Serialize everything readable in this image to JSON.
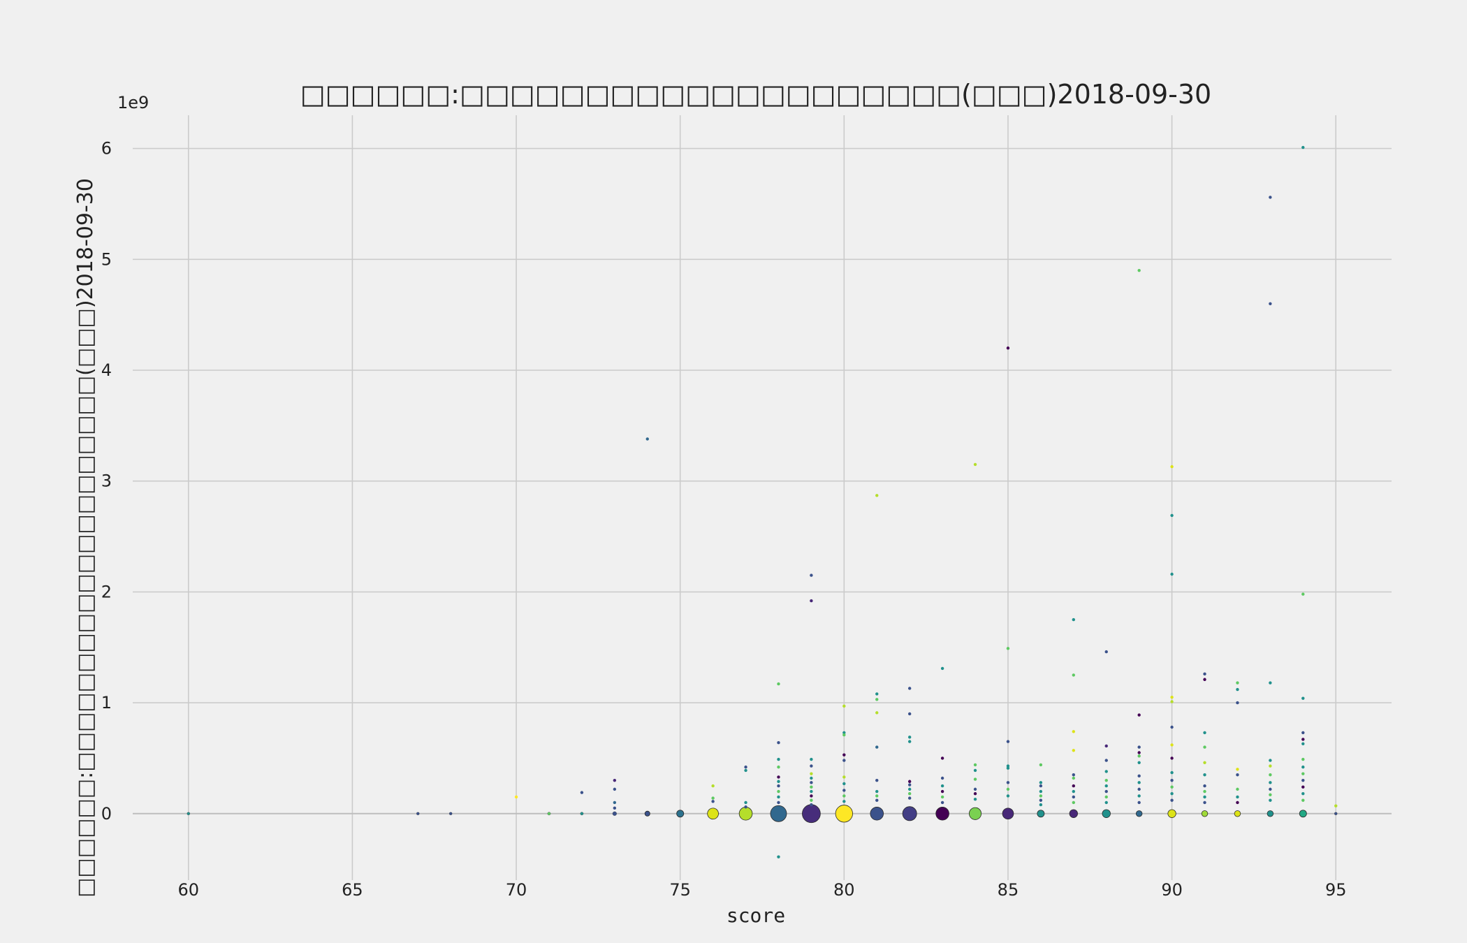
{
  "chart_data": {
    "type": "scatter",
    "title": "□□□□□□:□□□□□□□□□□□□□□□□□□□□(□□□)2018-09-30",
    "xlabel": "score",
    "ylabel": "□□□□□□:□□□□□□□□□□□□□□□□□□□□(□□□)2018-09-30",
    "y_offset_label": "1e9",
    "xlim": [
      58.3,
      96.7
    ],
    "ylim": [
      -0.6,
      6.3
    ],
    "x_ticks": [
      60,
      65,
      70,
      75,
      80,
      85,
      90,
      95
    ],
    "y_ticks": [
      0,
      1,
      2,
      3,
      4,
      5,
      6
    ],
    "grid": true,
    "point_size_encodes": "count of points at each score",
    "colors_ramp": [
      "#440154",
      "#3b528b",
      "#21918c",
      "#5ec962",
      "#fde725"
    ],
    "aggregated_points": [
      {
        "x": 60,
        "y": 0,
        "size": 1,
        "color": "#21918c"
      },
      {
        "x": 67,
        "y": 0,
        "size": 1,
        "color": "#3b528b"
      },
      {
        "x": 68,
        "y": 0,
        "size": 1,
        "color": "#3b528b"
      },
      {
        "x": 71,
        "y": 0,
        "size": 3,
        "color": "#5ec962"
      },
      {
        "x": 72,
        "y": 0,
        "size": 3,
        "color": "#21918c"
      },
      {
        "x": 73,
        "y": 0,
        "size": 4,
        "color": "#3b528b"
      },
      {
        "x": 74,
        "y": 0,
        "size": 5,
        "color": "#3b528b"
      },
      {
        "x": 75,
        "y": 0,
        "size": 7,
        "color": "#2c728e"
      },
      {
        "x": 76,
        "y": 0,
        "size": 11,
        "color": "#dde318"
      },
      {
        "x": 77,
        "y": 0,
        "size": 13,
        "color": "#b5de2b"
      },
      {
        "x": 78,
        "y": 0,
        "size": 16,
        "color": "#31688e"
      },
      {
        "x": 79,
        "y": 0,
        "size": 18,
        "color": "#472d7b"
      },
      {
        "x": 80,
        "y": 0,
        "size": 17,
        "color": "#fde725"
      },
      {
        "x": 81,
        "y": 0,
        "size": 13,
        "color": "#3b528b"
      },
      {
        "x": 82,
        "y": 0,
        "size": 14,
        "color": "#433e85"
      },
      {
        "x": 83,
        "y": 0,
        "size": 13,
        "color": "#440154"
      },
      {
        "x": 84,
        "y": 0,
        "size": 12,
        "color": "#7ad151"
      },
      {
        "x": 85,
        "y": 0,
        "size": 11,
        "color": "#482878"
      },
      {
        "x": 86,
        "y": 0,
        "size": 7,
        "color": "#21918c"
      },
      {
        "x": 87,
        "y": 0,
        "size": 8,
        "color": "#482878"
      },
      {
        "x": 88,
        "y": 0,
        "size": 8,
        "color": "#21918c"
      },
      {
        "x": 89,
        "y": 0,
        "size": 6,
        "color": "#31688e"
      },
      {
        "x": 90,
        "y": 0,
        "size": 8,
        "color": "#dde318"
      },
      {
        "x": 91,
        "y": 0,
        "size": 6,
        "color": "#a0da39"
      },
      {
        "x": 92,
        "y": 0,
        "size": 6,
        "color": "#dde318"
      },
      {
        "x": 93,
        "y": 0,
        "size": 6,
        "color": "#21918c"
      },
      {
        "x": 94,
        "y": 0,
        "size": 7,
        "color": "#22a884"
      },
      {
        "x": 95,
        "y": 0,
        "size": 2,
        "color": "#3b528b"
      }
    ],
    "points": [
      {
        "x": 70,
        "y": 0.15,
        "color": "#fde725"
      },
      {
        "x": 72,
        "y": 0.19,
        "color": "#3b528b"
      },
      {
        "x": 73,
        "y": 0.3,
        "color": "#482878"
      },
      {
        "x": 73,
        "y": 0.22,
        "color": "#3b528b"
      },
      {
        "x": 73,
        "y": 0.1,
        "color": "#31688e"
      },
      {
        "x": 73,
        "y": 0.05,
        "color": "#3b528b"
      },
      {
        "x": 74,
        "y": 3.38,
        "color": "#31688e"
      },
      {
        "x": 76,
        "y": 0.25,
        "color": "#b5de2b"
      },
      {
        "x": 76,
        "y": 0.14,
        "color": "#5ec962"
      },
      {
        "x": 76,
        "y": 0.11,
        "color": "#3b528b"
      },
      {
        "x": 77,
        "y": 0.42,
        "color": "#3b528b"
      },
      {
        "x": 77,
        "y": 0.39,
        "color": "#21918c"
      },
      {
        "x": 77,
        "y": 0.1,
        "color": "#21918c"
      },
      {
        "x": 77,
        "y": 0.06,
        "color": "#3b528b"
      },
      {
        "x": 78,
        "y": 1.17,
        "color": "#5ec962"
      },
      {
        "x": 78,
        "y": 0.64,
        "color": "#3b528b"
      },
      {
        "x": 78,
        "y": 0.49,
        "color": "#21918c"
      },
      {
        "x": 78,
        "y": 0.42,
        "color": "#5ec962"
      },
      {
        "x": 78,
        "y": 0.33,
        "color": "#440154"
      },
      {
        "x": 78,
        "y": 0.29,
        "color": "#21918c"
      },
      {
        "x": 78,
        "y": 0.25,
        "color": "#3b528b"
      },
      {
        "x": 78,
        "y": 0.2,
        "color": "#5ec962"
      },
      {
        "x": 78,
        "y": 0.15,
        "color": "#21918c"
      },
      {
        "x": 78,
        "y": 0.1,
        "color": "#3b528b"
      },
      {
        "x": 78,
        "y": -0.39,
        "color": "#21918c"
      },
      {
        "x": 79,
        "y": 2.15,
        "color": "#3b528b"
      },
      {
        "x": 79,
        "y": 1.92,
        "color": "#482878"
      },
      {
        "x": 79,
        "y": 0.49,
        "color": "#21918c"
      },
      {
        "x": 79,
        "y": 0.43,
        "color": "#3b528b"
      },
      {
        "x": 79,
        "y": 0.36,
        "color": "#b5de2b"
      },
      {
        "x": 79,
        "y": 0.32,
        "color": "#21918c"
      },
      {
        "x": 79,
        "y": 0.28,
        "color": "#3b528b"
      },
      {
        "x": 79,
        "y": 0.24,
        "color": "#5ec962"
      },
      {
        "x": 79,
        "y": 0.2,
        "color": "#21918c"
      },
      {
        "x": 79,
        "y": 0.16,
        "color": "#440154"
      },
      {
        "x": 79,
        "y": 0.12,
        "color": "#5ec962"
      },
      {
        "x": 79,
        "y": 0.08,
        "color": "#3b528b"
      },
      {
        "x": 80,
        "y": 0.97,
        "color": "#b5de2b"
      },
      {
        "x": 80,
        "y": 0.73,
        "color": "#21918c"
      },
      {
        "x": 80,
        "y": 0.71,
        "color": "#5ec962"
      },
      {
        "x": 80,
        "y": 0.53,
        "color": "#440154"
      },
      {
        "x": 80,
        "y": 0.48,
        "color": "#3b528b"
      },
      {
        "x": 80,
        "y": 0.33,
        "color": "#b5de2b"
      },
      {
        "x": 80,
        "y": 0.27,
        "color": "#21918c"
      },
      {
        "x": 80,
        "y": 0.21,
        "color": "#3b528b"
      },
      {
        "x": 80,
        "y": 0.16,
        "color": "#5ec962"
      },
      {
        "x": 80,
        "y": 0.11,
        "color": "#21918c"
      },
      {
        "x": 81,
        "y": 2.87,
        "color": "#b5de2b"
      },
      {
        "x": 81,
        "y": 1.08,
        "color": "#21918c"
      },
      {
        "x": 81,
        "y": 1.03,
        "color": "#5ec962"
      },
      {
        "x": 81,
        "y": 0.91,
        "color": "#b5de2b"
      },
      {
        "x": 81,
        "y": 0.6,
        "color": "#31688e"
      },
      {
        "x": 81,
        "y": 0.3,
        "color": "#3b528b"
      },
      {
        "x": 81,
        "y": 0.2,
        "color": "#21918c"
      },
      {
        "x": 81,
        "y": 0.16,
        "color": "#5ec962"
      },
      {
        "x": 81,
        "y": 0.12,
        "color": "#3b528b"
      },
      {
        "x": 82,
        "y": 1.13,
        "color": "#3b528b"
      },
      {
        "x": 82,
        "y": 0.9,
        "color": "#3b528b"
      },
      {
        "x": 82,
        "y": 0.69,
        "color": "#21918c"
      },
      {
        "x": 82,
        "y": 0.65,
        "color": "#21918c"
      },
      {
        "x": 82,
        "y": 0.29,
        "color": "#440154"
      },
      {
        "x": 82,
        "y": 0.26,
        "color": "#3b528b"
      },
      {
        "x": 82,
        "y": 0.22,
        "color": "#21918c"
      },
      {
        "x": 82,
        "y": 0.18,
        "color": "#5ec962"
      },
      {
        "x": 82,
        "y": 0.14,
        "color": "#3b528b"
      },
      {
        "x": 83,
        "y": 1.31,
        "color": "#21918c"
      },
      {
        "x": 83,
        "y": 0.5,
        "color": "#440154"
      },
      {
        "x": 83,
        "y": 0.32,
        "color": "#3b528b"
      },
      {
        "x": 83,
        "y": 0.25,
        "color": "#21918c"
      },
      {
        "x": 83,
        "y": 0.2,
        "color": "#440154"
      },
      {
        "x": 83,
        "y": 0.15,
        "color": "#5ec962"
      },
      {
        "x": 83,
        "y": 0.1,
        "color": "#3b528b"
      },
      {
        "x": 84,
        "y": 3.15,
        "color": "#b5de2b"
      },
      {
        "x": 84,
        "y": 0.44,
        "color": "#5ec962"
      },
      {
        "x": 84,
        "y": 0.39,
        "color": "#21918c"
      },
      {
        "x": 84,
        "y": 0.31,
        "color": "#5ec962"
      },
      {
        "x": 84,
        "y": 0.22,
        "color": "#3b528b"
      },
      {
        "x": 84,
        "y": 0.18,
        "color": "#440154"
      },
      {
        "x": 84,
        "y": 0.13,
        "color": "#21918c"
      },
      {
        "x": 85,
        "y": 4.2,
        "color": "#440154"
      },
      {
        "x": 85,
        "y": 1.49,
        "color": "#5ec962"
      },
      {
        "x": 85,
        "y": 0.65,
        "color": "#3b528b"
      },
      {
        "x": 85,
        "y": 0.43,
        "color": "#21918c"
      },
      {
        "x": 85,
        "y": 0.41,
        "color": "#21918c"
      },
      {
        "x": 85,
        "y": 0.28,
        "color": "#3b528b"
      },
      {
        "x": 85,
        "y": 0.22,
        "color": "#5ec962"
      },
      {
        "x": 85,
        "y": 0.16,
        "color": "#21918c"
      },
      {
        "x": 86,
        "y": 0.44,
        "color": "#5ec962"
      },
      {
        "x": 86,
        "y": 0.28,
        "color": "#21918c"
      },
      {
        "x": 86,
        "y": 0.25,
        "color": "#3b528b"
      },
      {
        "x": 86,
        "y": 0.2,
        "color": "#21918c"
      },
      {
        "x": 86,
        "y": 0.16,
        "color": "#5ec962"
      },
      {
        "x": 86,
        "y": 0.12,
        "color": "#3b528b"
      },
      {
        "x": 86,
        "y": 0.08,
        "color": "#21918c"
      },
      {
        "x": 87,
        "y": 1.75,
        "color": "#21918c"
      },
      {
        "x": 87,
        "y": 1.25,
        "color": "#5ec962"
      },
      {
        "x": 87,
        "y": 0.74,
        "color": "#dde318"
      },
      {
        "x": 87,
        "y": 0.57,
        "color": "#dde318"
      },
      {
        "x": 87,
        "y": 0.35,
        "color": "#3b528b"
      },
      {
        "x": 87,
        "y": 0.32,
        "color": "#5ec962"
      },
      {
        "x": 87,
        "y": 0.25,
        "color": "#440154"
      },
      {
        "x": 87,
        "y": 0.2,
        "color": "#21918c"
      },
      {
        "x": 87,
        "y": 0.15,
        "color": "#3b528b"
      },
      {
        "x": 87,
        "y": 0.1,
        "color": "#5ec962"
      },
      {
        "x": 88,
        "y": 1.46,
        "color": "#3b528b"
      },
      {
        "x": 88,
        "y": 0.61,
        "color": "#482878"
      },
      {
        "x": 88,
        "y": 0.48,
        "color": "#3b528b"
      },
      {
        "x": 88,
        "y": 0.38,
        "color": "#21918c"
      },
      {
        "x": 88,
        "y": 0.3,
        "color": "#5ec962"
      },
      {
        "x": 88,
        "y": 0.25,
        "color": "#21918c"
      },
      {
        "x": 88,
        "y": 0.2,
        "color": "#3b528b"
      },
      {
        "x": 88,
        "y": 0.15,
        "color": "#5ec962"
      },
      {
        "x": 88,
        "y": 0.1,
        "color": "#21918c"
      },
      {
        "x": 89,
        "y": 4.9,
        "color": "#5ec962"
      },
      {
        "x": 89,
        "y": 0.89,
        "color": "#440154"
      },
      {
        "x": 89,
        "y": 0.6,
        "color": "#3b528b"
      },
      {
        "x": 89,
        "y": 0.55,
        "color": "#440154"
      },
      {
        "x": 89,
        "y": 0.52,
        "color": "#5ec962"
      },
      {
        "x": 89,
        "y": 0.46,
        "color": "#21918c"
      },
      {
        "x": 89,
        "y": 0.34,
        "color": "#3b528b"
      },
      {
        "x": 89,
        "y": 0.28,
        "color": "#21918c"
      },
      {
        "x": 89,
        "y": 0.22,
        "color": "#3b528b"
      },
      {
        "x": 89,
        "y": 0.16,
        "color": "#21918c"
      },
      {
        "x": 89,
        "y": 0.1,
        "color": "#3b528b"
      },
      {
        "x": 90,
        "y": 3.13,
        "color": "#dde318"
      },
      {
        "x": 90,
        "y": 2.69,
        "color": "#21918c"
      },
      {
        "x": 90,
        "y": 2.16,
        "color": "#21918c"
      },
      {
        "x": 90,
        "y": 1.05,
        "color": "#dde318"
      },
      {
        "x": 90,
        "y": 1.01,
        "color": "#b5de2b"
      },
      {
        "x": 90,
        "y": 0.78,
        "color": "#3b528b"
      },
      {
        "x": 90,
        "y": 0.62,
        "color": "#dde318"
      },
      {
        "x": 90,
        "y": 0.5,
        "color": "#440154"
      },
      {
        "x": 90,
        "y": 0.37,
        "color": "#21918c"
      },
      {
        "x": 90,
        "y": 0.3,
        "color": "#3b528b"
      },
      {
        "x": 90,
        "y": 0.24,
        "color": "#5ec962"
      },
      {
        "x": 90,
        "y": 0.18,
        "color": "#21918c"
      },
      {
        "x": 90,
        "y": 0.12,
        "color": "#3b528b"
      },
      {
        "x": 91,
        "y": 1.26,
        "color": "#3b528b"
      },
      {
        "x": 91,
        "y": 1.21,
        "color": "#440154"
      },
      {
        "x": 91,
        "y": 0.73,
        "color": "#21918c"
      },
      {
        "x": 91,
        "y": 0.6,
        "color": "#5ec962"
      },
      {
        "x": 91,
        "y": 0.46,
        "color": "#b5de2b"
      },
      {
        "x": 91,
        "y": 0.35,
        "color": "#21918c"
      },
      {
        "x": 91,
        "y": 0.25,
        "color": "#3b528b"
      },
      {
        "x": 91,
        "y": 0.2,
        "color": "#5ec962"
      },
      {
        "x": 91,
        "y": 0.15,
        "color": "#21918c"
      },
      {
        "x": 91,
        "y": 0.1,
        "color": "#3b528b"
      },
      {
        "x": 92,
        "y": 1.18,
        "color": "#5ec962"
      },
      {
        "x": 92,
        "y": 1.12,
        "color": "#21918c"
      },
      {
        "x": 92,
        "y": 1.0,
        "color": "#3b528b"
      },
      {
        "x": 92,
        "y": 0.4,
        "color": "#dde318"
      },
      {
        "x": 92,
        "y": 0.35,
        "color": "#3b528b"
      },
      {
        "x": 92,
        "y": 0.22,
        "color": "#5ec962"
      },
      {
        "x": 92,
        "y": 0.15,
        "color": "#21918c"
      },
      {
        "x": 92,
        "y": 0.1,
        "color": "#440154"
      },
      {
        "x": 93,
        "y": 5.56,
        "color": "#3b528b"
      },
      {
        "x": 93,
        "y": 4.6,
        "color": "#3b528b"
      },
      {
        "x": 93,
        "y": 1.18,
        "color": "#21918c"
      },
      {
        "x": 93,
        "y": 0.48,
        "color": "#21918c"
      },
      {
        "x": 93,
        "y": 0.43,
        "color": "#b5de2b"
      },
      {
        "x": 93,
        "y": 0.35,
        "color": "#5ec962"
      },
      {
        "x": 93,
        "y": 0.28,
        "color": "#21918c"
      },
      {
        "x": 93,
        "y": 0.22,
        "color": "#3b528b"
      },
      {
        "x": 93,
        "y": 0.17,
        "color": "#5ec962"
      },
      {
        "x": 93,
        "y": 0.12,
        "color": "#21918c"
      },
      {
        "x": 94,
        "y": 6.01,
        "color": "#21918c"
      },
      {
        "x": 94,
        "y": 1.98,
        "color": "#5ec962"
      },
      {
        "x": 94,
        "y": 1.04,
        "color": "#21918c"
      },
      {
        "x": 94,
        "y": 0.73,
        "color": "#3b528b"
      },
      {
        "x": 94,
        "y": 0.67,
        "color": "#440154"
      },
      {
        "x": 94,
        "y": 0.63,
        "color": "#21918c"
      },
      {
        "x": 94,
        "y": 0.49,
        "color": "#5ec962"
      },
      {
        "x": 94,
        "y": 0.42,
        "color": "#21918c"
      },
      {
        "x": 94,
        "y": 0.36,
        "color": "#5ec962"
      },
      {
        "x": 94,
        "y": 0.3,
        "color": "#3b528b"
      },
      {
        "x": 94,
        "y": 0.24,
        "color": "#440154"
      },
      {
        "x": 94,
        "y": 0.18,
        "color": "#21918c"
      },
      {
        "x": 94,
        "y": 0.12,
        "color": "#5ec962"
      },
      {
        "x": 95,
        "y": 0.07,
        "color": "#b5de2b"
      }
    ]
  }
}
